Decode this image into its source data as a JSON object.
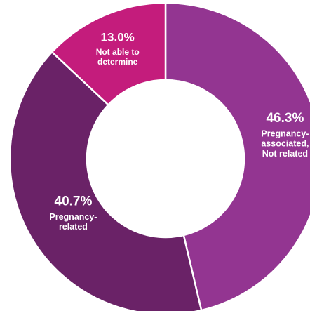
{
  "chart_data": {
    "type": "pie",
    "donut": true,
    "title": "",
    "legend": "none",
    "slices": [
      {
        "percent_label": "46.3%",
        "value": 46.3,
        "label_lines": [
          "Pregnancy-",
          "associated,",
          "Not related"
        ],
        "color": "#933591"
      },
      {
        "percent_label": "40.7%",
        "value": 40.7,
        "label_lines": [
          "Pregnancy-",
          "related"
        ],
        "color": "#6a2267"
      },
      {
        "percent_label": "13.0%",
        "value": 13.0,
        "label_lines": [
          "Not able to",
          "determine"
        ],
        "color": "#c41c7c"
      }
    ]
  }
}
